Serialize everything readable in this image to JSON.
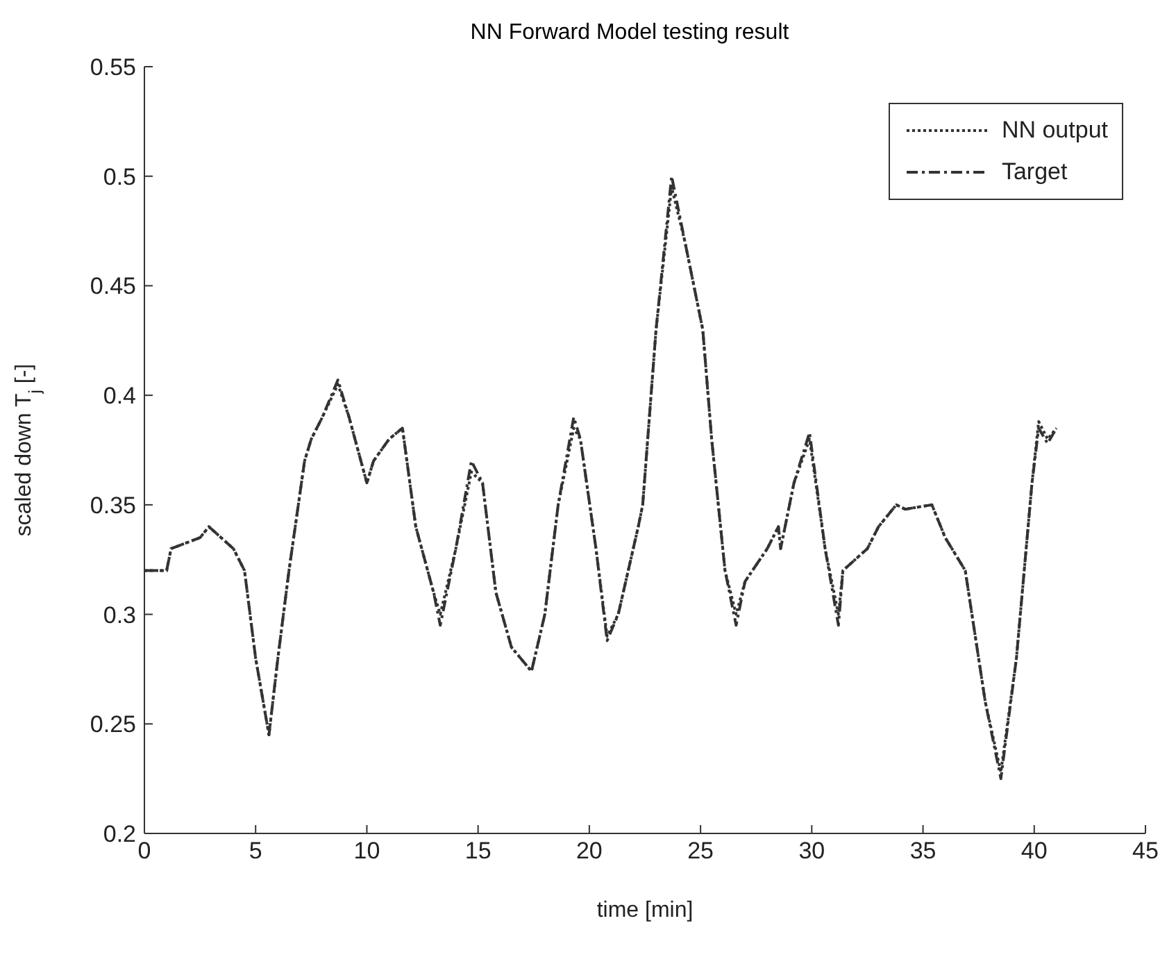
{
  "chart_data": {
    "type": "line",
    "title": "NN Forward Model testing result",
    "xlabel": "time [min]",
    "ylabel": "scaled down T$_{j}$ [-]",
    "xlim": [
      0,
      45
    ],
    "xticks": [
      0,
      5,
      10,
      15,
      20,
      25,
      30,
      35,
      40,
      45
    ],
    "ylim": [
      0.2,
      0.55
    ],
    "yticks": [
      0.2,
      0.25,
      0.3,
      0.35,
      0.4,
      0.45,
      0.5,
      0.55
    ],
    "legend": "top right",
    "marker": "none",
    "series": [
      {
        "name": "NN output",
        "color": "#333333",
        "line_style": "dotted",
        "x": [
          0,
          1,
          1.2,
          2.5,
          2.9,
          4,
          4.5,
          5,
          5.6,
          6,
          6.5,
          7.2,
          7.5,
          8,
          8.7,
          9.2,
          10,
          10.3,
          11,
          11.6,
          12.2,
          13,
          13.3,
          14,
          14.7,
          15.2,
          15.8,
          16.5,
          17.4,
          18,
          18.6,
          19.3,
          19.6,
          20.3,
          20.8,
          21.3,
          22.2,
          22.4,
          23,
          23.7,
          24.3,
          25.1,
          25.5,
          26.1,
          26.6,
          27,
          28,
          28.5,
          28.6,
          29.2,
          29.9,
          30.6,
          31.2,
          31.4,
          32.5,
          33,
          33.8,
          34.2,
          35.4,
          36,
          36.9,
          37.8,
          38.5,
          39.2,
          39.9,
          40.2,
          40.6,
          41
        ],
        "values": [
          0.32,
          0.32,
          0.33,
          0.335,
          0.34,
          0.33,
          0.32,
          0.28,
          0.245,
          0.28,
          0.32,
          0.37,
          0.38,
          0.39,
          0.405,
          0.39,
          0.36,
          0.37,
          0.38,
          0.385,
          0.34,
          0.31,
          0.3,
          0.33,
          0.365,
          0.36,
          0.31,
          0.285,
          0.274,
          0.3,
          0.35,
          0.385,
          0.38,
          0.33,
          0.29,
          0.3,
          0.34,
          0.35,
          0.43,
          0.495,
          0.47,
          0.43,
          0.38,
          0.32,
          0.3,
          0.315,
          0.33,
          0.34,
          0.33,
          0.36,
          0.38,
          0.33,
          0.3,
          0.32,
          0.33,
          0.34,
          0.35,
          0.348,
          0.35,
          0.335,
          0.32,
          0.26,
          0.228,
          0.28,
          0.36,
          0.388,
          0.38,
          0.385
        ]
      },
      {
        "name": "Target",
        "color": "#333333",
        "line_style": "dashdot",
        "x": [
          0,
          1,
          1.2,
          2.5,
          2.9,
          4,
          4.5,
          5,
          5.6,
          6,
          6.5,
          7.2,
          7.5,
          8,
          8.7,
          9.2,
          10,
          10.3,
          11,
          11.6,
          12.2,
          13,
          13.3,
          14,
          14.7,
          15.2,
          15.8,
          16.5,
          17.4,
          18,
          18.6,
          19.3,
          19.6,
          20.3,
          20.8,
          21.3,
          22.2,
          22.4,
          23,
          23.7,
          24.3,
          25.1,
          25.5,
          26.1,
          26.6,
          27,
          28,
          28.5,
          28.6,
          29.2,
          29.9,
          30.6,
          31.2,
          31.4,
          32.5,
          33,
          33.8,
          34.2,
          35.4,
          36,
          36.9,
          37.8,
          38.5,
          39.2,
          39.9,
          40.2,
          40.6,
          41
        ],
        "values": [
          0.32,
          0.32,
          0.33,
          0.335,
          0.34,
          0.33,
          0.32,
          0.28,
          0.245,
          0.28,
          0.32,
          0.37,
          0.38,
          0.39,
          0.407,
          0.39,
          0.36,
          0.37,
          0.38,
          0.385,
          0.34,
          0.31,
          0.295,
          0.33,
          0.37,
          0.36,
          0.31,
          0.285,
          0.274,
          0.3,
          0.35,
          0.39,
          0.38,
          0.33,
          0.288,
          0.3,
          0.34,
          0.35,
          0.43,
          0.5,
          0.47,
          0.43,
          0.38,
          0.32,
          0.295,
          0.315,
          0.33,
          0.34,
          0.33,
          0.36,
          0.383,
          0.33,
          0.295,
          0.32,
          0.33,
          0.34,
          0.35,
          0.348,
          0.35,
          0.335,
          0.32,
          0.26,
          0.225,
          0.28,
          0.36,
          0.385,
          0.378,
          0.385
        ]
      }
    ]
  }
}
